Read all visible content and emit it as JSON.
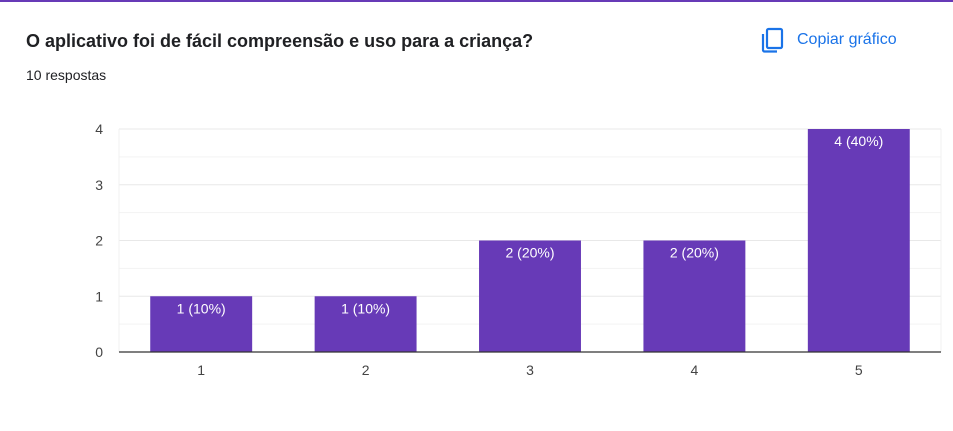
{
  "header": {
    "question_title": "O aplicativo foi de fácil compreensão e uso para a criança?",
    "response_count": "10 respostas",
    "copy_label": "Copiar gráfico",
    "copy_icon": "copy-icon"
  },
  "colors": {
    "accent": "#673ab7",
    "bar": "#673ab7",
    "link": "#1a73e8",
    "grid": "#e8e8e8",
    "axis": "#333333"
  },
  "chart_data": {
    "type": "bar",
    "categories": [
      "1",
      "2",
      "3",
      "4",
      "5"
    ],
    "values": [
      1,
      1,
      2,
      2,
      4
    ],
    "data_labels": [
      "1 (10%)",
      "1 (10%)",
      "2 (20%)",
      "2 (20%)",
      "4 (40%)"
    ],
    "ylim": [
      0,
      4
    ],
    "yticks": [
      "0",
      "1",
      "2",
      "3",
      "4"
    ],
    "grid": true,
    "title": "",
    "xlabel": "",
    "ylabel": ""
  }
}
